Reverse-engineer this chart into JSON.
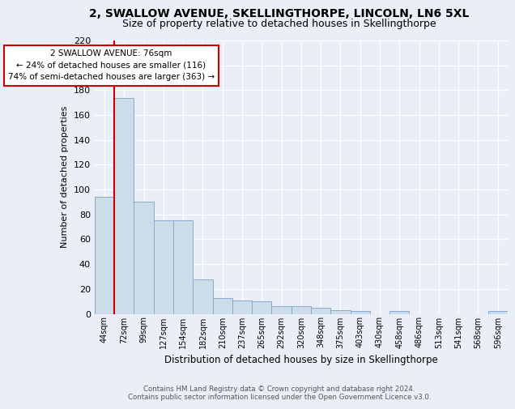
{
  "title1": "2, SWALLOW AVENUE, SKELLINGTHORPE, LINCOLN, LN6 5XL",
  "title2": "Size of property relative to detached houses in Skellingthorpe",
  "xlabel": "Distribution of detached houses by size in Skellingthorpe",
  "ylabel": "Number of detached properties",
  "bin_labels": [
    "44sqm",
    "72sqm",
    "99sqm",
    "127sqm",
    "154sqm",
    "182sqm",
    "210sqm",
    "237sqm",
    "265sqm",
    "292sqm",
    "320sqm",
    "348sqm",
    "375sqm",
    "403sqm",
    "430sqm",
    "458sqm",
    "486sqm",
    "513sqm",
    "541sqm",
    "568sqm",
    "596sqm"
  ],
  "bar_heights": [
    94,
    174,
    90,
    75,
    75,
    28,
    13,
    11,
    10,
    6,
    6,
    5,
    3,
    2,
    0,
    2,
    0,
    0,
    0,
    0,
    2
  ],
  "bar_color": "#ccdce8",
  "bar_edge_color": "#88aacc",
  "vline_color": "#cc0000",
  "annotation_text": "2 SWALLOW AVENUE: 76sqm\n← 24% of detached houses are smaller (116)\n74% of semi-detached houses are larger (363) →",
  "annotation_box_color": "#ffffff",
  "annotation_box_edge": "#cc0000",
  "ylim": [
    0,
    220
  ],
  "yticks": [
    0,
    20,
    40,
    60,
    80,
    100,
    120,
    140,
    160,
    180,
    200,
    220
  ],
  "footer1": "Contains HM Land Registry data © Crown copyright and database right 2024.",
  "footer2": "Contains public sector information licensed under the Open Government Licence v3.0.",
  "bg_color": "#eaeff7",
  "grid_color": "#ffffff",
  "title1_fontsize": 10,
  "title2_fontsize": 9
}
